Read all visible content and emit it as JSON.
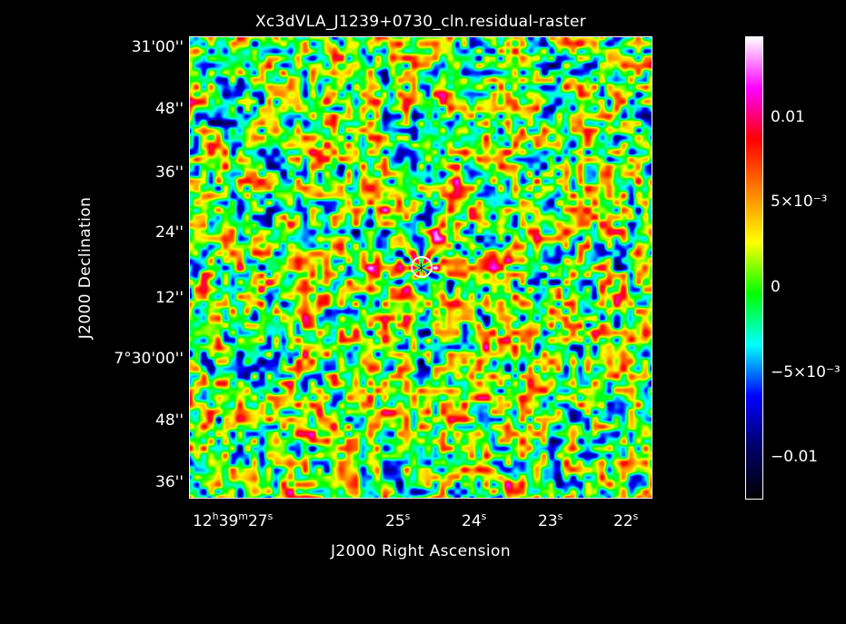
{
  "chart_data": {
    "type": "heatmap",
    "title": "Xc3dVLA_J1239+0730_cln.residual-raster",
    "xlabel": "J2000 Right Ascension",
    "ylabel": "J2000 Declination",
    "x_ticks": [
      {
        "h": "12",
        "m": "39",
        "s": "27"
      },
      {
        "s": "25"
      },
      {
        "s": "24"
      },
      {
        "s": "23"
      },
      {
        "s": "22"
      }
    ],
    "y_ticks": [
      "31'00''",
      "48''",
      "36''",
      "24''",
      "12''",
      "7°30'00''",
      "48''",
      "36''"
    ],
    "colorbar": {
      "range": [
        -0.0125,
        0.0145
      ],
      "ticks": [
        {
          "value": 0.01,
          "label": "0.01"
        },
        {
          "value": 0.005,
          "label": "5×10⁻³"
        },
        {
          "value": 0,
          "label": "0"
        },
        {
          "value": -0.005,
          "label": "−5×10⁻³"
        },
        {
          "value": -0.01,
          "label": "−0.01"
        }
      ],
      "colors": [
        "#000000",
        "#000066",
        "#0000ff",
        "#00ffff",
        "#00ff00",
        "#ffff00",
        "#ff8000",
        "#ff0000",
        "#ff00ff",
        "#ffffff"
      ]
    },
    "grid": false
  }
}
